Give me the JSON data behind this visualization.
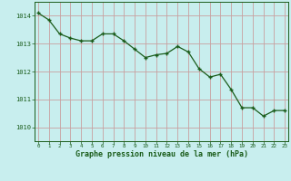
{
  "x": [
    0,
    1,
    2,
    3,
    4,
    5,
    6,
    7,
    8,
    9,
    10,
    11,
    12,
    13,
    14,
    15,
    16,
    17,
    18,
    19,
    20,
    21,
    22,
    23
  ],
  "y": [
    1014.1,
    1013.85,
    1013.35,
    1013.2,
    1013.1,
    1013.1,
    1013.35,
    1013.35,
    1013.1,
    1012.8,
    1012.5,
    1012.6,
    1012.65,
    1012.9,
    1012.7,
    1012.1,
    1011.8,
    1011.9,
    1011.35,
    1010.7,
    1010.7,
    1010.4,
    1010.6,
    1010.6
  ],
  "line_color": "#1a5c1a",
  "marker_color": "#1a5c1a",
  "bg_color": "#c8eeee",
  "grid_color": "#c8a0a0",
  "xlabel": "Graphe pression niveau de la mer (hPa)",
  "xlabel_color": "#1a5c1a",
  "tick_color": "#1a5c1a",
  "ylim": [
    1009.5,
    1014.5
  ],
  "yticks": [
    1010,
    1011,
    1012,
    1013,
    1014
  ],
  "xticks": [
    0,
    1,
    2,
    3,
    4,
    5,
    6,
    7,
    8,
    9,
    10,
    11,
    12,
    13,
    14,
    15,
    16,
    17,
    18,
    19,
    20,
    21,
    22,
    23
  ]
}
